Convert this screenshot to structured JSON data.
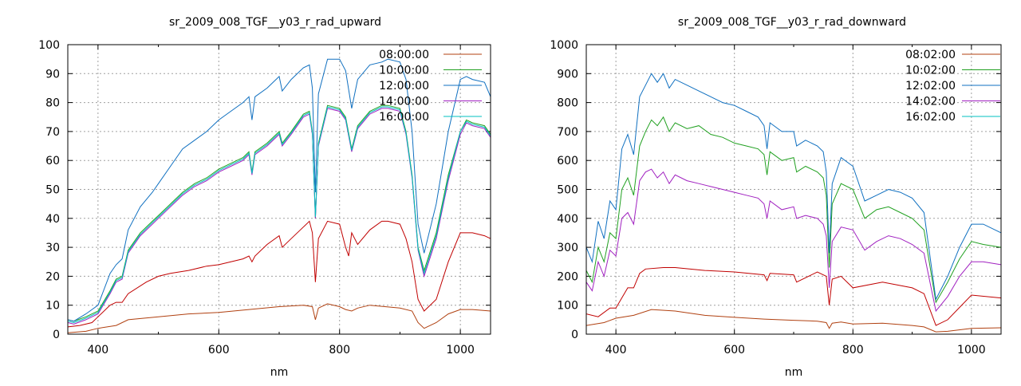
{
  "chart_data": [
    {
      "type": "line",
      "title": "sr_2009_008_TGF__y03_r_rad_upward",
      "xlabel": "nm",
      "ylabel": "",
      "xlim": [
        350,
        1050
      ],
      "ylim": [
        0,
        100
      ],
      "xticks": [
        400,
        600,
        800,
        1000
      ],
      "yticks": [
        0,
        10,
        20,
        30,
        40,
        50,
        60,
        70,
        80,
        90,
        100
      ],
      "grid": true,
      "legend_position": "top-right",
      "series": [
        {
          "name": "08:00:00",
          "color": "#b04010",
          "x": [
            350,
            380,
            400,
            430,
            450,
            500,
            550,
            600,
            650,
            700,
            740,
            755,
            760,
            765,
            780,
            800,
            810,
            820,
            830,
            850,
            900,
            920,
            930,
            940,
            960,
            980,
            1000,
            1020,
            1050
          ],
          "y": [
            0.5,
            1,
            2,
            3,
            5,
            6,
            7,
            7.5,
            8.5,
            9.5,
            10,
            9.5,
            5,
            9,
            10.5,
            9.5,
            8.5,
            8,
            9,
            10,
            9,
            8,
            4,
            2,
            4,
            7,
            8.5,
            8.5,
            8
          ]
        },
        {
          "name": "10:00:00",
          "color": "#20a020",
          "x": [
            350,
            360,
            380,
            400,
            420,
            430,
            440,
            450,
            470,
            490,
            500,
            520,
            540,
            560,
            580,
            600,
            620,
            640,
            650,
            655,
            660,
            680,
            700,
            705,
            720,
            740,
            750,
            755,
            760,
            765,
            780,
            800,
            810,
            820,
            830,
            850,
            870,
            880,
            900,
            910,
            920,
            930,
            940,
            960,
            980,
            1000,
            1010,
            1020,
            1040,
            1050
          ],
          "y": [
            5,
            4.5,
            6,
            8,
            15,
            19,
            20,
            29,
            35,
            39,
            41,
            45,
            49,
            52,
            54,
            57,
            59,
            61,
            63,
            56,
            63,
            66,
            70,
            66,
            70,
            76,
            77,
            70,
            40,
            66,
            79,
            78,
            75,
            64,
            72,
            77,
            79,
            79,
            78,
            70,
            55,
            30,
            22,
            35,
            55,
            70,
            74,
            73,
            72,
            69
          ]
        },
        {
          "name": "12:00:00",
          "color": "#1070c0",
          "x": [
            350,
            360,
            380,
            400,
            420,
            430,
            440,
            450,
            470,
            490,
            500,
            520,
            540,
            560,
            580,
            600,
            620,
            640,
            650,
            655,
            660,
            680,
            700,
            705,
            720,
            740,
            750,
            755,
            760,
            765,
            780,
            800,
            810,
            820,
            830,
            850,
            870,
            880,
            900,
            910,
            920,
            930,
            940,
            960,
            980,
            1000,
            1010,
            1020,
            1040,
            1050
          ],
          "y": [
            5,
            4.5,
            7,
            10,
            21,
            24,
            26,
            36,
            44,
            49,
            52,
            58,
            64,
            67,
            70,
            74,
            77,
            80,
            82,
            74,
            82,
            85,
            89,
            84,
            88,
            92,
            93,
            85,
            49,
            83,
            95,
            95,
            91,
            78,
            88,
            93,
            94,
            95,
            94,
            88,
            70,
            38,
            28,
            45,
            70,
            88,
            89,
            88,
            87,
            82
          ]
        },
        {
          "name": "14:00:00",
          "color": "#a020c0",
          "x": [
            350,
            360,
            380,
            400,
            420,
            430,
            440,
            450,
            470,
            490,
            500,
            520,
            540,
            560,
            580,
            600,
            620,
            640,
            650,
            655,
            660,
            680,
            700,
            705,
            720,
            740,
            750,
            755,
            760,
            765,
            780,
            800,
            810,
            820,
            830,
            850,
            870,
            880,
            900,
            910,
            920,
            930,
            940,
            960,
            980,
            1000,
            1010,
            1020,
            1040,
            1050
          ],
          "y": [
            4,
            3.5,
            5,
            7,
            14,
            18,
            19,
            28,
            34,
            38,
            40,
            44,
            48,
            51,
            53,
            56,
            58,
            60,
            62,
            55,
            62,
            65,
            69,
            65,
            69,
            75,
            76,
            69,
            40,
            65,
            78,
            77,
            74,
            63,
            71,
            76,
            78,
            78,
            77,
            69,
            54,
            29,
            20,
            33,
            53,
            69,
            73,
            72,
            71,
            68
          ]
        },
        {
          "name": "16:00:00",
          "color": "#00c0c0",
          "x": [
            350,
            360,
            380,
            400,
            420,
            430,
            440,
            450,
            470,
            490,
            500,
            520,
            540,
            560,
            580,
            600,
            620,
            640,
            650,
            655,
            660,
            680,
            700,
            705,
            720,
            740,
            750,
            755,
            760,
            765,
            780,
            800,
            810,
            820,
            830,
            850,
            870,
            880,
            900,
            910,
            920,
            930,
            940,
            960,
            980,
            1000,
            1010,
            1020,
            1040,
            1050
          ],
          "y": [
            4.5,
            4,
            5.5,
            7.5,
            14.5,
            18.5,
            19.5,
            28.5,
            34.5,
            38.5,
            40.5,
            44.5,
            48.5,
            51.5,
            53.5,
            56.5,
            58.5,
            60.5,
            62.5,
            55.5,
            62.5,
            65.5,
            69.5,
            65.5,
            69.5,
            75.5,
            76.5,
            69.5,
            40.5,
            65.5,
            78.5,
            77.5,
            74.5,
            63.5,
            71.5,
            76.5,
            78.5,
            78.5,
            77.5,
            69.5,
            54.5,
            29.5,
            21,
            34,
            54,
            70,
            73.5,
            72.5,
            71.5,
            68.5
          ]
        },
        {
          "name": "",
          "color": "#c00000",
          "x": [
            350,
            370,
            390,
            400,
            420,
            430,
            440,
            450,
            480,
            500,
            520,
            550,
            580,
            600,
            640,
            650,
            655,
            660,
            680,
            700,
            705,
            720,
            740,
            750,
            755,
            760,
            765,
            780,
            800,
            810,
            815,
            820,
            830,
            850,
            870,
            880,
            900,
            910,
            920,
            930,
            940,
            960,
            980,
            1000,
            1020,
            1040,
            1050
          ],
          "y": [
            2.5,
            3,
            4,
            6,
            10,
            11,
            11,
            14,
            18,
            20,
            21,
            22,
            23.5,
            24,
            26,
            27,
            25,
            27,
            31,
            34,
            30,
            33,
            37,
            39,
            35,
            18,
            33,
            39,
            38,
            30,
            27,
            35,
            31,
            36,
            39,
            39,
            38,
            33,
            25,
            12,
            8,
            12,
            25,
            35,
            35,
            34,
            33
          ]
        }
      ]
    },
    {
      "type": "line",
      "title": "sr_2009_008_TGF__y03_r_rad_downward",
      "xlabel": "nm",
      "ylabel": "",
      "xlim": [
        350,
        1050
      ],
      "ylim": [
        0,
        1000
      ],
      "xticks": [
        400,
        600,
        800,
        1000
      ],
      "yticks": [
        0,
        100,
        200,
        300,
        400,
        500,
        600,
        700,
        800,
        900,
        1000
      ],
      "grid": true,
      "legend_position": "top-right",
      "series": [
        {
          "name": "08:02:00",
          "color": "#b04010",
          "x": [
            350,
            380,
            400,
            430,
            460,
            500,
            550,
            600,
            650,
            700,
            740,
            755,
            760,
            765,
            780,
            800,
            850,
            900,
            920,
            940,
            960,
            1000,
            1050
          ],
          "y": [
            30,
            40,
            55,
            65,
            85,
            80,
            65,
            58,
            52,
            48,
            45,
            40,
            20,
            38,
            42,
            35,
            38,
            30,
            25,
            8,
            10,
            20,
            22
          ]
        },
        {
          "name": "10:02:00",
          "color": "#20a020",
          "x": [
            350,
            360,
            370,
            380,
            390,
            400,
            410,
            420,
            430,
            440,
            450,
            460,
            470,
            480,
            490,
            500,
            520,
            540,
            560,
            580,
            600,
            620,
            640,
            650,
            655,
            660,
            680,
            700,
            705,
            720,
            740,
            750,
            755,
            760,
            765,
            780,
            800,
            820,
            840,
            860,
            880,
            900,
            920,
            940,
            960,
            980,
            1000,
            1020,
            1050
          ],
          "y": [
            220,
            180,
            300,
            250,
            350,
            330,
            500,
            540,
            480,
            650,
            700,
            740,
            720,
            750,
            700,
            730,
            710,
            720,
            690,
            680,
            660,
            650,
            640,
            620,
            550,
            630,
            600,
            610,
            560,
            580,
            560,
            540,
            480,
            230,
            450,
            520,
            500,
            400,
            430,
            440,
            420,
            400,
            360,
            110,
            180,
            260,
            320,
            310,
            300
          ]
        },
        {
          "name": "12:02:00",
          "color": "#1070c0",
          "x": [
            350,
            360,
            370,
            380,
            390,
            400,
            410,
            420,
            430,
            440,
            450,
            460,
            470,
            480,
            490,
            500,
            520,
            540,
            560,
            580,
            600,
            620,
            640,
            650,
            655,
            660,
            680,
            700,
            705,
            720,
            740,
            750,
            755,
            760,
            765,
            780,
            800,
            820,
            840,
            860,
            880,
            900,
            920,
            940,
            960,
            980,
            1000,
            1020,
            1050
          ],
          "y": [
            300,
            250,
            390,
            330,
            460,
            430,
            640,
            690,
            620,
            820,
            860,
            900,
            870,
            900,
            850,
            880,
            860,
            840,
            820,
            800,
            790,
            770,
            750,
            720,
            640,
            730,
            700,
            700,
            650,
            670,
            650,
            630,
            560,
            280,
            520,
            610,
            580,
            460,
            480,
            500,
            490,
            470,
            420,
            120,
            200,
            300,
            380,
            380,
            350
          ]
        },
        {
          "name": "14:02:00",
          "color": "#a020c0",
          "x": [
            350,
            360,
            370,
            380,
            390,
            400,
            410,
            420,
            430,
            440,
            450,
            460,
            470,
            480,
            490,
            500,
            520,
            540,
            560,
            580,
            600,
            620,
            640,
            650,
            655,
            660,
            680,
            700,
            705,
            720,
            740,
            750,
            755,
            760,
            765,
            780,
            800,
            820,
            840,
            860,
            880,
            900,
            920,
            940,
            960,
            980,
            1000,
            1020,
            1050
          ],
          "y": [
            180,
            150,
            250,
            200,
            290,
            270,
            400,
            420,
            380,
            530,
            560,
            570,
            540,
            560,
            520,
            550,
            530,
            520,
            510,
            500,
            490,
            480,
            470,
            450,
            400,
            460,
            430,
            440,
            400,
            410,
            400,
            380,
            340,
            160,
            320,
            370,
            360,
            290,
            320,
            340,
            330,
            310,
            280,
            80,
            130,
            200,
            250,
            250,
            240
          ]
        },
        {
          "name": "16:02:00",
          "color": "#00c0c0",
          "x": [],
          "y": []
        },
        {
          "name": "",
          "color": "#c00000",
          "x": [
            350,
            370,
            390,
            400,
            420,
            430,
            440,
            450,
            480,
            500,
            550,
            600,
            650,
            655,
            660,
            700,
            705,
            740,
            755,
            760,
            765,
            780,
            800,
            850,
            900,
            920,
            940,
            960,
            1000,
            1050
          ],
          "y": [
            70,
            60,
            90,
            90,
            160,
            160,
            210,
            225,
            230,
            230,
            220,
            215,
            205,
            185,
            210,
            205,
            180,
            215,
            200,
            100,
            190,
            200,
            160,
            180,
            160,
            140,
            30,
            50,
            135,
            125
          ]
        }
      ]
    }
  ]
}
